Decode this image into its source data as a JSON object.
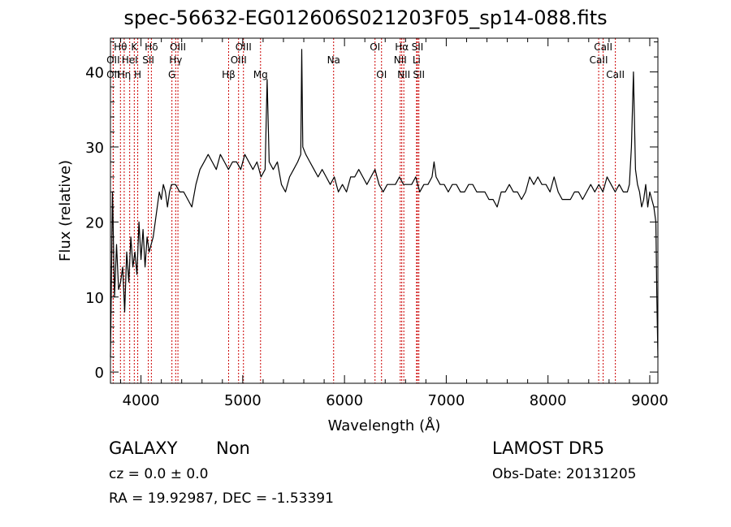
{
  "header": {
    "title": "spec-56632-EG012606S021203F05_sp14-088.fits"
  },
  "info": {
    "class": "GALAXY",
    "subclass": "Non",
    "survey": "LAMOST DR5",
    "cz": "cz = 0.0 ± 0.0",
    "obs_date": "Obs-Date: 20131205",
    "radec": "RA =  19.92987, DEC =  -1.53391"
  },
  "chart_data": {
    "type": "line",
    "title": "spec-56632-EG012606S021203F05_sp14-088.fits",
    "xlabel": "Wavelength (Å)",
    "ylabel": "Flux (relative)",
    "xlim": [
      3700,
      9080
    ],
    "ylim": [
      -1.5,
      44.5
    ],
    "x_ticks": [
      4000,
      5000,
      6000,
      7000,
      8000,
      9000
    ],
    "y_ticks": [
      0,
      10,
      20,
      30,
      40
    ],
    "grid": false,
    "line_color": "#000000",
    "marker_color": "#cc0000",
    "series": [
      {
        "x": [
          3700,
          3720,
          3740,
          3760,
          3780,
          3800,
          3820,
          3840,
          3860,
          3880,
          3900,
          3920,
          3940,
          3960,
          3980,
          4000,
          4020,
          4040,
          4060,
          4080,
          4100,
          4120,
          4140,
          4160,
          4180,
          4200,
          4220,
          4240,
          4260,
          4280,
          4300,
          4340,
          4380,
          4420,
          4460,
          4500,
          4540,
          4580,
          4620,
          4660,
          4700,
          4740,
          4780,
          4820,
          4860,
          4900,
          4940,
          4980,
          5020,
          5060,
          5100,
          5140,
          5180,
          5220,
          5240,
          5260,
          5300,
          5340,
          5380,
          5420,
          5460,
          5500,
          5540,
          5570,
          5580,
          5590,
          5620,
          5660,
          5700,
          5740,
          5780,
          5820,
          5860,
          5900,
          5940,
          5980,
          6020,
          6060,
          6100,
          6140,
          6180,
          6220,
          6260,
          6300,
          6340,
          6380,
          6420,
          6460,
          6500,
          6540,
          6580,
          6620,
          6660,
          6700,
          6740,
          6780,
          6820,
          6860,
          6880,
          6900,
          6940,
          6980,
          7020,
          7060,
          7100,
          7140,
          7180,
          7220,
          7260,
          7300,
          7340,
          7380,
          7420,
          7460,
          7500,
          7540,
          7580,
          7620,
          7660,
          7700,
          7740,
          7780,
          7820,
          7860,
          7900,
          7940,
          7980,
          8020,
          8060,
          8100,
          8140,
          8180,
          8220,
          8260,
          8300,
          8340,
          8380,
          8420,
          8460,
          8500,
          8540,
          8580,
          8620,
          8660,
          8700,
          8740,
          8780,
          8800,
          8820,
          8840,
          8860,
          8880,
          8900,
          8920,
          8940,
          8960,
          8980,
          9000,
          9020,
          9040,
          9060,
          9070,
          9080
        ],
        "y": [
          2,
          24,
          10,
          17,
          11,
          12,
          14,
          8,
          16,
          12,
          18,
          14,
          16,
          13,
          20,
          15,
          19,
          14,
          18,
          16,
          17,
          18,
          20,
          22,
          24,
          23,
          25,
          24,
          22,
          24,
          25,
          25,
          24,
          24,
          23,
          22,
          25,
          27,
          28,
          29,
          28,
          27,
          29,
          28,
          27,
          28,
          28,
          27,
          29,
          28,
          27,
          28,
          26,
          27,
          39,
          28,
          27,
          28,
          25,
          24,
          26,
          27,
          28,
          29,
          43,
          30,
          29,
          28,
          27,
          26,
          27,
          26,
          25,
          26,
          24,
          25,
          24,
          26,
          26,
          27,
          26,
          25,
          26,
          27,
          25,
          24,
          25,
          25,
          25,
          26,
          25,
          25,
          25,
          26,
          24,
          25,
          25,
          26,
          28,
          26,
          25,
          25,
          24,
          25,
          25,
          24,
          24,
          25,
          25,
          24,
          24,
          24,
          23,
          23,
          22,
          24,
          24,
          25,
          24,
          24,
          23,
          24,
          26,
          25,
          26,
          25,
          25,
          24,
          26,
          24,
          23,
          23,
          23,
          24,
          24,
          23,
          24,
          25,
          24,
          25,
          24,
          26,
          25,
          24,
          25,
          24,
          24,
          25,
          30,
          40,
          27,
          25,
          24,
          22,
          23,
          25,
          22,
          24,
          23,
          22,
          20,
          10,
          2
        ]
      }
    ],
    "lines": [
      {
        "label": "OII",
        "wl": 3727,
        "row": 2
      },
      {
        "label": "OII",
        "wl": 3727,
        "row": 3
      },
      {
        "label": "Hθ",
        "wl": 3798,
        "row": 1
      },
      {
        "label": "HeI",
        "wl": 3889,
        "row": 2
      },
      {
        "label": "Hη",
        "wl": 3835,
        "row": 3
      },
      {
        "label": "K",
        "wl": 3934,
        "row": 1
      },
      {
        "label": "H",
        "wl": 3968,
        "row": 3
      },
      {
        "label": "Hδ",
        "wl": 4102,
        "row": 1
      },
      {
        "label": "SII",
        "wl": 4072,
        "row": 2
      },
      {
        "label": "OIII",
        "wl": 4363,
        "row": 1
      },
      {
        "label": "Hγ",
        "wl": 4341,
        "row": 2
      },
      {
        "label": "G",
        "wl": 4304,
        "row": 3
      },
      {
        "label": "OIII",
        "wl": 5007,
        "row": 1
      },
      {
        "label": "OIII",
        "wl": 4959,
        "row": 2
      },
      {
        "label": "Hβ",
        "wl": 4861,
        "row": 3
      },
      {
        "label": "Mg",
        "wl": 5175,
        "row": 3
      },
      {
        "label": "Na",
        "wl": 5893,
        "row": 2
      },
      {
        "label": "OI",
        "wl": 6300,
        "row": 1
      },
      {
        "label": "OI",
        "wl": 6364,
        "row": 3
      },
      {
        "label": "Hα",
        "wl": 6563,
        "row": 1
      },
      {
        "label": "NII",
        "wl": 6548,
        "row": 2
      },
      {
        "label": "NII",
        "wl": 6583,
        "row": 3
      },
      {
        "label": "SII",
        "wl": 6717,
        "row": 1
      },
      {
        "label": "Li",
        "wl": 6708,
        "row": 2
      },
      {
        "label": "SII",
        "wl": 6731,
        "row": 3
      },
      {
        "label": "CaII",
        "wl": 8542,
        "row": 1
      },
      {
        "label": "CaII",
        "wl": 8498,
        "row": 2
      },
      {
        "label": "CaII",
        "wl": 8662,
        "row": 3
      }
    ]
  }
}
